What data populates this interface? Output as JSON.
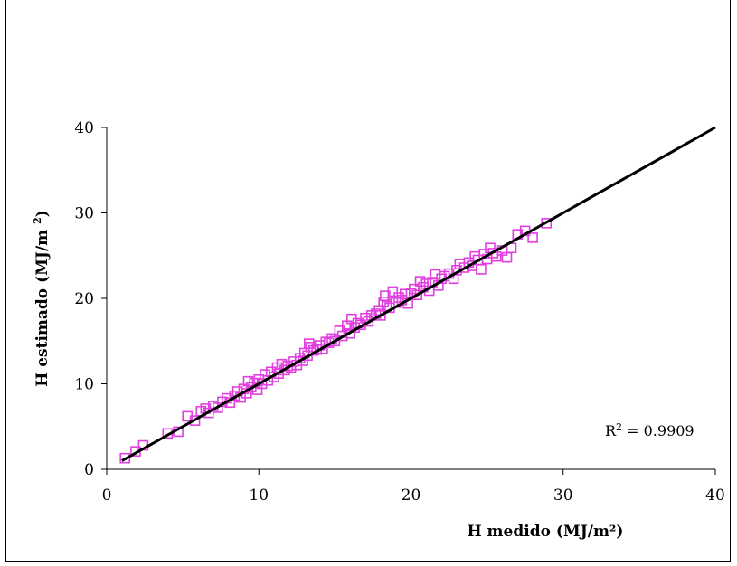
{
  "chart_data": {
    "type": "scatter",
    "title": "",
    "xlabel": "H medido (MJ/m²)",
    "ylabel_main": "H estimado  (MJ/m ",
    "ylabel_sup": "2",
    "ylabel_end": ")",
    "xlim": [
      0,
      40
    ],
    "ylim": [
      0,
      40
    ],
    "xticks": [
      "0",
      "10",
      "20",
      "30",
      "40"
    ],
    "yticks": [
      "0",
      "10",
      "20",
      "30",
      "40"
    ],
    "grid": false,
    "legend": "none",
    "marker_color": "#e040e0",
    "line_color": "#000000",
    "r2_prefix": "R",
    "r2_sup": "2",
    "r2_value": " = 0.9909",
    "trendline": {
      "x": [
        1,
        40
      ],
      "y": [
        1,
        40
      ]
    },
    "series": [
      {
        "marker": "square-open",
        "points": [
          [
            1.2,
            1.3
          ],
          [
            1.9,
            2.1
          ],
          [
            2.4,
            2.8
          ],
          [
            4.0,
            4.2
          ],
          [
            4.7,
            4.4
          ],
          [
            5.3,
            6.2
          ],
          [
            5.8,
            5.7
          ],
          [
            6.2,
            6.8
          ],
          [
            6.5,
            7.1
          ],
          [
            6.7,
            6.6
          ],
          [
            7.0,
            7.4
          ],
          [
            7.3,
            7.2
          ],
          [
            7.6,
            7.9
          ],
          [
            7.9,
            8.3
          ],
          [
            8.1,
            7.8
          ],
          [
            8.4,
            8.6
          ],
          [
            8.6,
            9.1
          ],
          [
            8.8,
            8.4
          ],
          [
            9.0,
            9.4
          ],
          [
            9.2,
            8.9
          ],
          [
            9.3,
            10.3
          ],
          [
            9.5,
            9.6
          ],
          [
            9.7,
            10.1
          ],
          [
            9.9,
            9.3
          ],
          [
            10.0,
            10.5
          ],
          [
            10.2,
            10.0
          ],
          [
            10.4,
            11.1
          ],
          [
            10.6,
            10.4
          ],
          [
            10.8,
            11.4
          ],
          [
            11.0,
            10.8
          ],
          [
            11.2,
            11.9
          ],
          [
            11.3,
            11.2
          ],
          [
            11.5,
            12.3
          ],
          [
            11.7,
            11.6
          ],
          [
            11.9,
            12.1
          ],
          [
            12.1,
            11.9
          ],
          [
            12.3,
            12.6
          ],
          [
            12.5,
            12.2
          ],
          [
            12.7,
            13.0
          ],
          [
            12.9,
            12.7
          ],
          [
            13.0,
            13.6
          ],
          [
            13.2,
            13.3
          ],
          [
            13.3,
            14.7
          ],
          [
            13.4,
            14.3
          ],
          [
            13.6,
            13.9
          ],
          [
            13.8,
            14.0
          ],
          [
            14.0,
            14.5
          ],
          [
            14.2,
            14.1
          ],
          [
            14.4,
            14.9
          ],
          [
            14.6,
            14.8
          ],
          [
            14.8,
            15.3
          ],
          [
            15.0,
            15.0
          ],
          [
            15.3,
            16.2
          ],
          [
            15.5,
            15.6
          ],
          [
            15.8,
            16.8
          ],
          [
            16.0,
            15.9
          ],
          [
            16.1,
            17.6
          ],
          [
            16.3,
            16.6
          ],
          [
            16.5,
            17.1
          ],
          [
            16.7,
            16.9
          ],
          [
            17.0,
            17.7
          ],
          [
            17.2,
            17.3
          ],
          [
            17.4,
            18.0
          ],
          [
            17.7,
            18.2
          ],
          [
            17.9,
            18.6
          ],
          [
            18.0,
            18.0
          ],
          [
            18.2,
            19.6
          ],
          [
            18.3,
            20.3
          ],
          [
            18.4,
            19.1
          ],
          [
            18.6,
            18.9
          ],
          [
            18.8,
            20.8
          ],
          [
            19.0,
            19.5
          ],
          [
            19.2,
            20.1
          ],
          [
            19.4,
            19.8
          ],
          [
            19.6,
            20.5
          ],
          [
            19.8,
            19.4
          ],
          [
            20.0,
            20.6
          ],
          [
            20.2,
            21.1
          ],
          [
            20.4,
            20.4
          ],
          [
            20.6,
            22.0
          ],
          [
            20.8,
            21.3
          ],
          [
            21.0,
            21.7
          ],
          [
            21.2,
            20.9
          ],
          [
            21.4,
            21.9
          ],
          [
            21.6,
            22.8
          ],
          [
            21.8,
            21.5
          ],
          [
            22.0,
            22.3
          ],
          [
            22.2,
            22.6
          ],
          [
            22.5,
            22.9
          ],
          [
            22.8,
            22.3
          ],
          [
            23.0,
            23.3
          ],
          [
            23.2,
            24.0
          ],
          [
            23.5,
            23.6
          ],
          [
            23.8,
            24.2
          ],
          [
            24.0,
            23.8
          ],
          [
            24.2,
            24.9
          ],
          [
            24.4,
            24.5
          ],
          [
            24.6,
            23.4
          ],
          [
            24.8,
            25.2
          ],
          [
            25.0,
            24.6
          ],
          [
            25.2,
            25.9
          ],
          [
            25.4,
            25.3
          ],
          [
            25.6,
            24.9
          ],
          [
            26.0,
            25.6
          ],
          [
            26.3,
            24.8
          ],
          [
            26.6,
            25.9
          ],
          [
            27.0,
            27.5
          ],
          [
            27.5,
            27.9
          ],
          [
            28.0,
            27.1
          ],
          [
            28.9,
            28.8
          ]
        ]
      }
    ]
  }
}
